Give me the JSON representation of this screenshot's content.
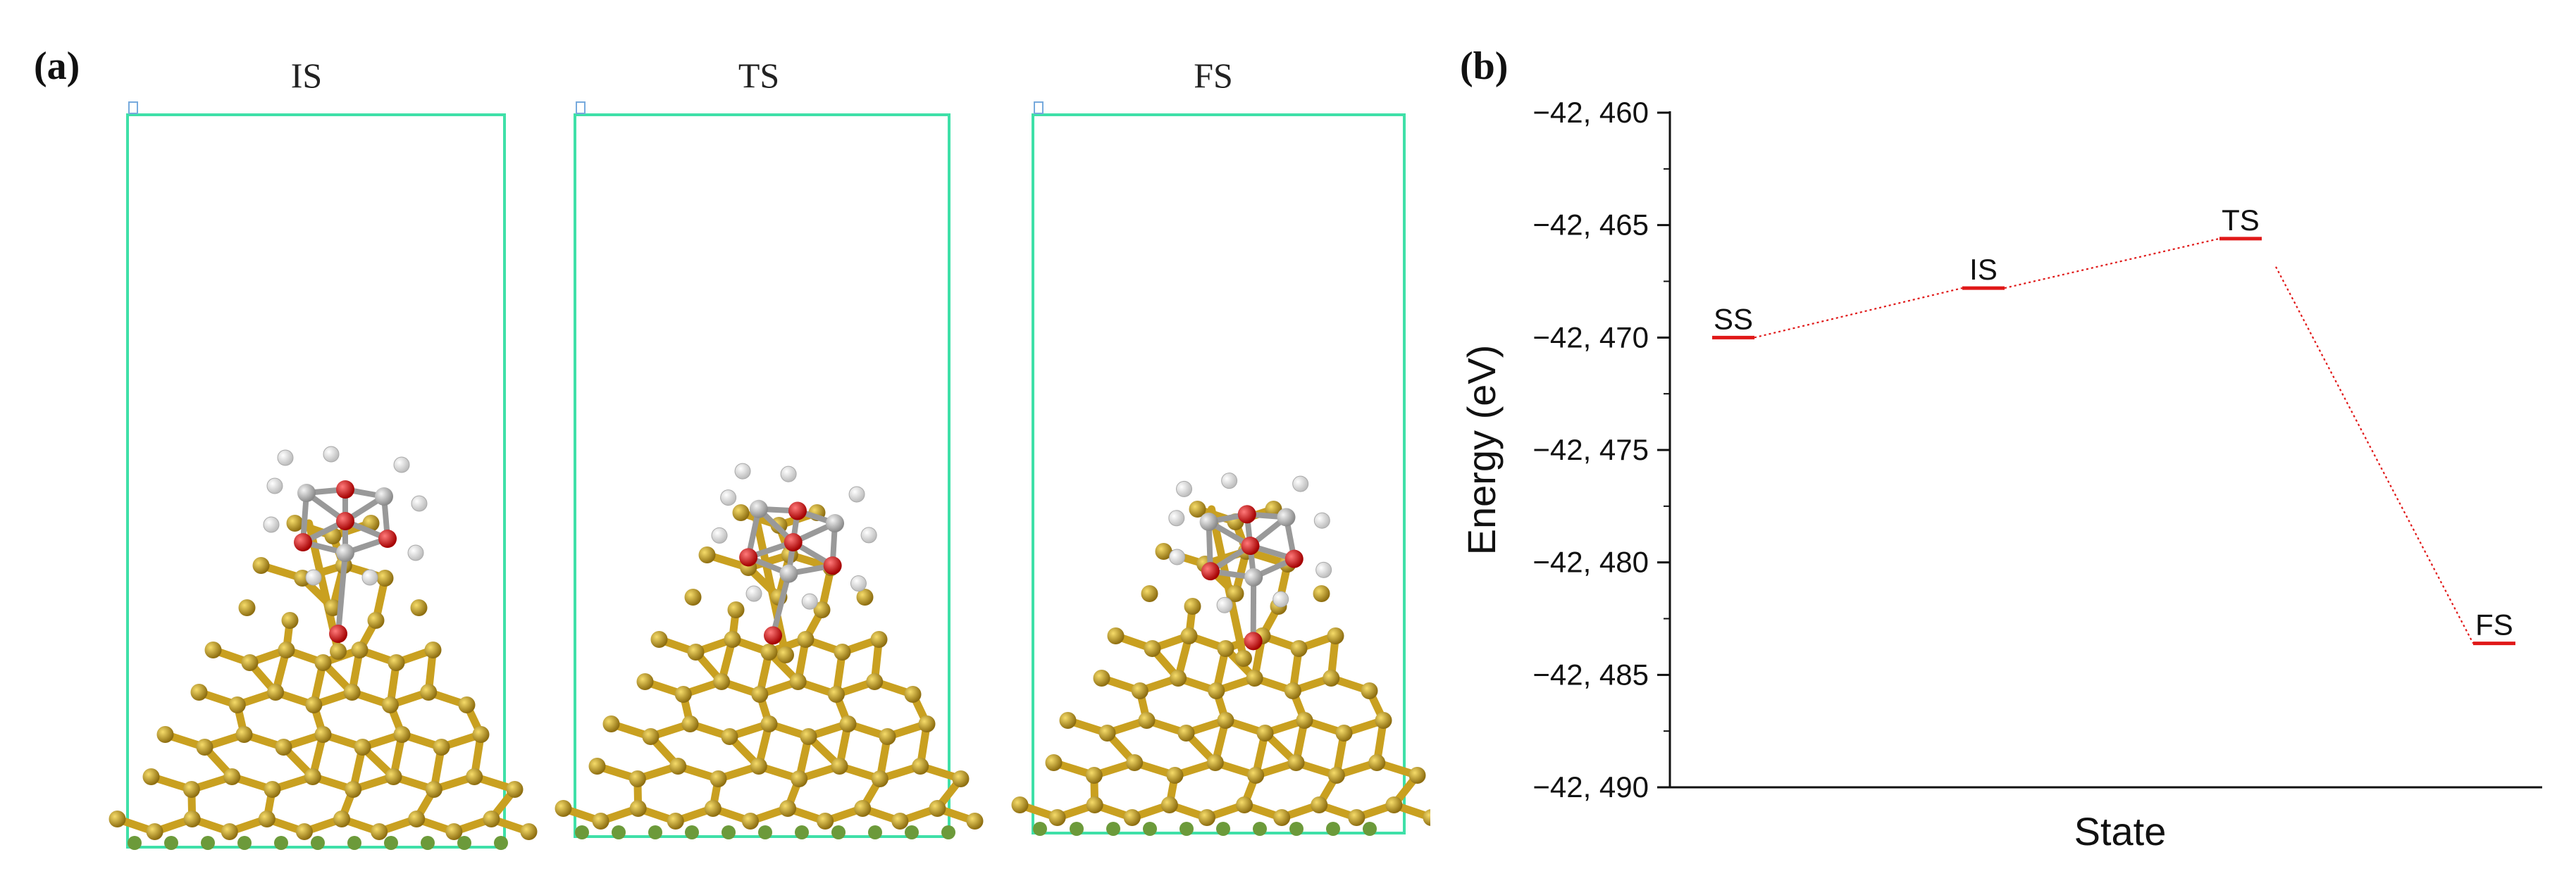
{
  "panel_a": {
    "label": "(a)",
    "structures": [
      {
        "title": "IS"
      },
      {
        "title": "TS"
      },
      {
        "title": "FS"
      }
    ],
    "colors": {
      "cell": "#3fe0a8",
      "gold": "#d9b12a",
      "gold_dark": "#8e6e10",
      "oxygen": "#e02020",
      "carbon": "#b9b9b9",
      "hydrogen": "#f2f2f2"
    }
  },
  "panel_b": {
    "label": "(b)"
  },
  "chart_data": {
    "type": "line",
    "title": "",
    "xlabel": "State",
    "ylabel": "Energy (eV)",
    "ylim": [
      -42490,
      -42460
    ],
    "yticks": [
      -42460,
      -42465,
      -42470,
      -42475,
      -42480,
      -42485,
      -42490
    ],
    "ytick_labels": [
      "−42, 460",
      "−42, 465",
      "−42, 470",
      "−42, 475",
      "−42, 480",
      "−42, 485",
      "−42, 490"
    ],
    "categories": [
      "SS",
      "IS",
      "TS",
      "FS"
    ],
    "values": [
      -42470.0,
      -42467.8,
      -42465.6,
      -42483.6
    ],
    "grid": false,
    "colors": {
      "level": "#e01818",
      "connector": "#e01818",
      "axis": "#111111"
    }
  }
}
